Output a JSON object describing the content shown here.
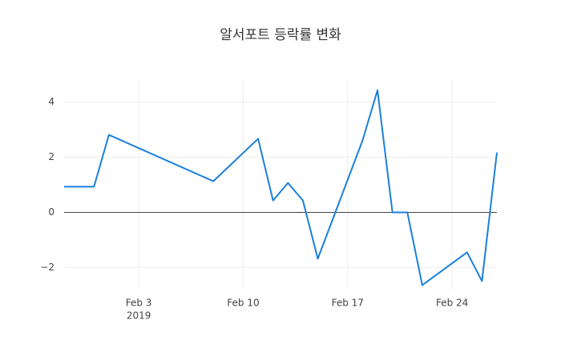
{
  "chart_data": {
    "type": "line",
    "title": "알서포트 등락률 변화",
    "x": [
      "2019-01-29",
      "2019-01-31",
      "2019-02-01",
      "2019-02-08",
      "2019-02-11",
      "2019-02-12",
      "2019-02-13",
      "2019-02-14",
      "2019-02-15",
      "2019-02-18",
      "2019-02-19",
      "2019-02-20",
      "2019-02-21",
      "2019-02-22",
      "2019-02-25",
      "2019-02-26",
      "2019-02-27"
    ],
    "series": [
      {
        "name": "등락률",
        "color": "#1a7fdb",
        "values": [
          0.93,
          0.93,
          2.81,
          1.13,
          2.67,
          0.43,
          1.07,
          0.43,
          -1.68,
          2.61,
          4.43,
          0,
          0,
          -2.64,
          -1.45,
          -2.49,
          2.17
        ]
      }
    ],
    "xlim": [
      "2019-01-29",
      "2019-02-27"
    ],
    "xticks": [
      {
        "value": "2019-02-03",
        "label": "Feb 3",
        "sublabel": "2019"
      },
      {
        "value": "2019-02-10",
        "label": "Feb 10"
      },
      {
        "value": "2019-02-17",
        "label": "Feb 17"
      },
      {
        "value": "2019-02-24",
        "label": "Feb 24"
      }
    ],
    "ylim": [
      -2.8,
      4.8
    ],
    "yticks": [
      {
        "value": -2,
        "label": "−2"
      },
      0,
      2,
      4
    ],
    "grid": true,
    "zeroline": true
  }
}
